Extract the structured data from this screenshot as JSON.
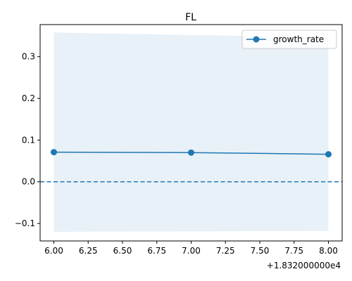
{
  "chart_data": {
    "type": "line",
    "title": "FL",
    "xlabel": "",
    "ylabel": "",
    "x_offset_label": "+1.832000000e4",
    "x_tick_labels": [
      "6.00",
      "6.25",
      "6.50",
      "6.75",
      "7.00",
      "7.25",
      "7.50",
      "7.75",
      "8.00"
    ],
    "x_ticks": [
      6.0,
      6.25,
      6.5,
      6.75,
      7.0,
      7.25,
      7.5,
      7.75,
      8.0
    ],
    "y_tick_labels": [
      "−0.1",
      "0.0",
      "0.1",
      "0.2",
      "0.3"
    ],
    "y_ticks": [
      -0.1,
      0.0,
      0.1,
      0.2,
      0.3
    ],
    "xlim": [
      5.9,
      8.1
    ],
    "ylim": [
      -0.142,
      0.377
    ],
    "grid": false,
    "legend_position": "top-right",
    "series": [
      {
        "name": "growth_rate",
        "x": [
          6.0,
          7.0,
          8.0
        ],
        "values": [
          0.071,
          0.07,
          0.066
        ],
        "color": "#1f77b4",
        "marker": "circle"
      }
    ],
    "band": {
      "x": [
        6.0,
        7.0,
        8.0
      ],
      "lower": [
        -0.12,
        -0.119,
        -0.118
      ],
      "upper": [
        0.358,
        0.352,
        0.347
      ],
      "color": "#1f77b4",
      "opacity": 0.1
    },
    "reference_line": {
      "y": 0.0,
      "style": "dashed",
      "color": "#1f77b4"
    }
  }
}
